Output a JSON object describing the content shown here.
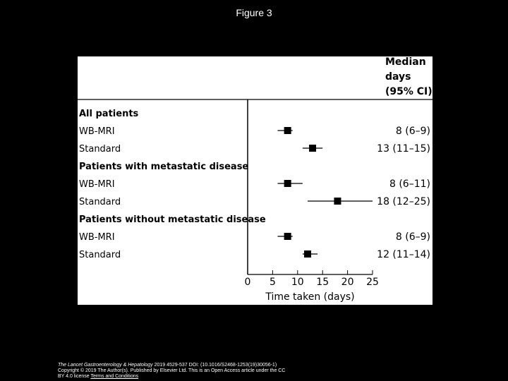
{
  "slide_title": "Figure 3",
  "chart_data": {
    "type": "forest",
    "xlabel": "Time taken (days)",
    "xlim": [
      0,
      25
    ],
    "xticks": [
      0,
      5,
      10,
      15,
      20,
      25
    ],
    "column_header": [
      "Median",
      "days",
      "(95% CI)"
    ],
    "rows": [
      {
        "label": "All patients",
        "heading": true
      },
      {
        "label": "WB-MRI",
        "median": 8,
        "ci": [
          6,
          9
        ],
        "value_text": "8 (6–9)"
      },
      {
        "label": "Standard",
        "median": 13,
        "ci": [
          11,
          15
        ],
        "value_text": "13 (11–15)"
      },
      {
        "label": "Patients with metastatic disease",
        "heading": true
      },
      {
        "label": "WB-MRI",
        "median": 8,
        "ci": [
          6,
          11
        ],
        "value_text": "8 (6–11)"
      },
      {
        "label": "Standard",
        "median": 18,
        "ci": [
          12,
          25
        ],
        "value_text": "18 (12–25)"
      },
      {
        "label": "Patients without metastatic disease",
        "heading": true
      },
      {
        "label": "WB-MRI",
        "median": 8,
        "ci": [
          6,
          9
        ],
        "value_text": "8 (6–9)"
      },
      {
        "label": "Standard",
        "median": 12,
        "ci": [
          11,
          14
        ],
        "value_text": "12 (11–14)"
      }
    ]
  },
  "citation": {
    "journal": "The Lancet Gastroenterology & Hepatology",
    "line1_rest": " 2019 4529-537 DOI: (10.1016/S2468-1253(19)30056-1)",
    "line2": "Copyright © 2019 The Author(s). Published by Elsevier Ltd. This is an Open Access article under the CC",
    "line3_prefix": "BY 4.0 license ",
    "link_text": "Terms and Conditions"
  }
}
